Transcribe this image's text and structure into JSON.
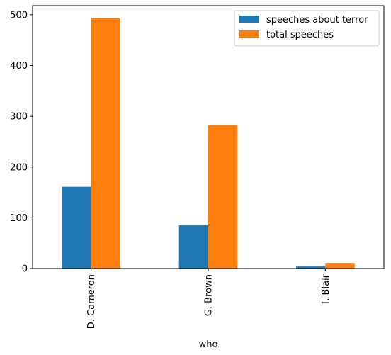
{
  "chart_data": {
    "type": "bar",
    "categories": [
      "D. Cameron",
      "G. Brown",
      "T. Blair"
    ],
    "series": [
      {
        "name": "speeches about terror",
        "values": [
          161,
          85,
          4
        ],
        "color": "#1f77b4"
      },
      {
        "name": "total speeches",
        "values": [
          493,
          283,
          11
        ],
        "color": "#ff7f0e"
      }
    ],
    "title": "",
    "xlabel": "who",
    "ylabel": "",
    "ylim": [
      0,
      518
    ],
    "yticks": [
      0,
      100,
      200,
      300,
      400,
      500
    ],
    "grid": false,
    "legend_position": "top-right"
  }
}
